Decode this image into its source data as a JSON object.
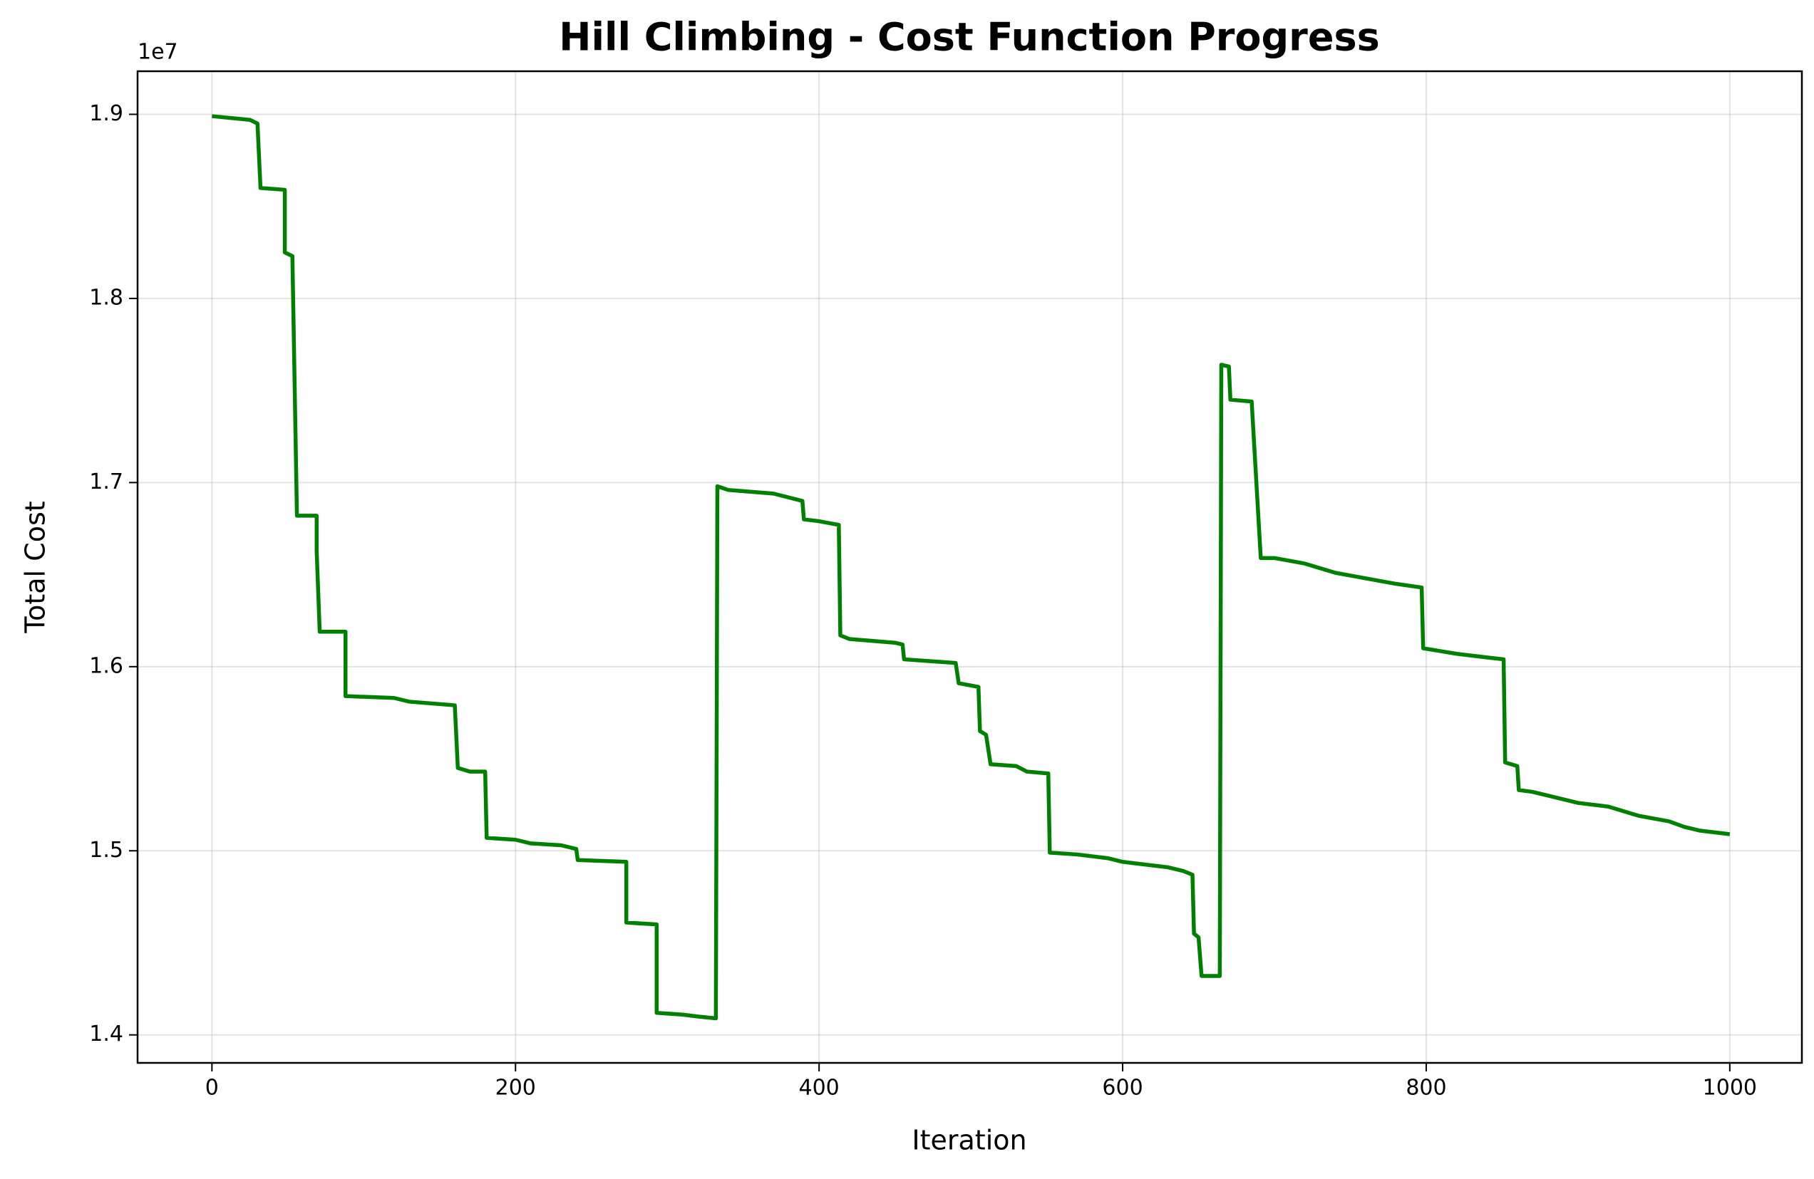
{
  "chart_data": {
    "type": "line",
    "title": "Hill Climbing - Cost Function Progress",
    "x_label": "Iteration",
    "y_label": "Total Cost",
    "y_offset_text": "1e7",
    "xlim": [
      -49,
      1047.5
    ],
    "ylim": [
      13848000,
      19234000
    ],
    "xticks": [
      0,
      200,
      400,
      600,
      800,
      1000
    ],
    "yticks": [
      {
        "value": 14000000,
        "label": "1.4"
      },
      {
        "value": 15000000,
        "label": "1.5"
      },
      {
        "value": 16000000,
        "label": "1.6"
      },
      {
        "value": 17000000,
        "label": "1.7"
      },
      {
        "value": 18000000,
        "label": "1.8"
      },
      {
        "value": 19000000,
        "label": "1.9"
      }
    ],
    "grid": true,
    "x": [
      0,
      25,
      30,
      32,
      48,
      48,
      53,
      56,
      69,
      69,
      71,
      88,
      88,
      120,
      130,
      160,
      162,
      170,
      180,
      181,
      200,
      210,
      230,
      240,
      241,
      273,
      273,
      293,
      293,
      310,
      320,
      332,
      333,
      340,
      370,
      389,
      390,
      400,
      413,
      414,
      420,
      450,
      455,
      456,
      490,
      492,
      505,
      506,
      510,
      513,
      530,
      537,
      551,
      552,
      570,
      590,
      600,
      610,
      630,
      640,
      646,
      647,
      650,
      652,
      664,
      665,
      670,
      671,
      685,
      691,
      700,
      720,
      740,
      760,
      780,
      797,
      798,
      820,
      840,
      851,
      852,
      860,
      861,
      870,
      880,
      900,
      920,
      940,
      960,
      970,
      980,
      1000
    ],
    "series": [
      {
        "name": "Total Cost",
        "color": "#008000",
        "values": [
          18990000,
          18970000,
          18950000,
          18600000,
          18590000,
          18250000,
          18230000,
          16820000,
          16820000,
          16630000,
          16190000,
          16190000,
          15840000,
          15830000,
          15810000,
          15790000,
          15450000,
          15430000,
          15430000,
          15070000,
          15060000,
          15040000,
          15030000,
          15010000,
          14950000,
          14940000,
          14610000,
          14600000,
          14120000,
          14110000,
          14100000,
          14090000,
          16980000,
          16960000,
          16940000,
          16900000,
          16800000,
          16790000,
          16770000,
          16170000,
          16150000,
          16130000,
          16120000,
          16040000,
          16020000,
          15910000,
          15890000,
          15650000,
          15630000,
          15470000,
          15460000,
          15430000,
          15420000,
          14990000,
          14980000,
          14960000,
          14940000,
          14930000,
          14910000,
          14890000,
          14870000,
          14550000,
          14530000,
          14320000,
          14320000,
          17640000,
          17630000,
          17450000,
          17440000,
          16590000,
          16590000,
          16560000,
          16510000,
          16480000,
          16450000,
          16430000,
          16100000,
          16070000,
          16050000,
          16040000,
          15480000,
          15460000,
          15330000,
          15320000,
          15300000,
          15260000,
          15240000,
          15190000,
          15160000,
          15130000,
          15110000,
          15090000
        ]
      }
    ]
  }
}
